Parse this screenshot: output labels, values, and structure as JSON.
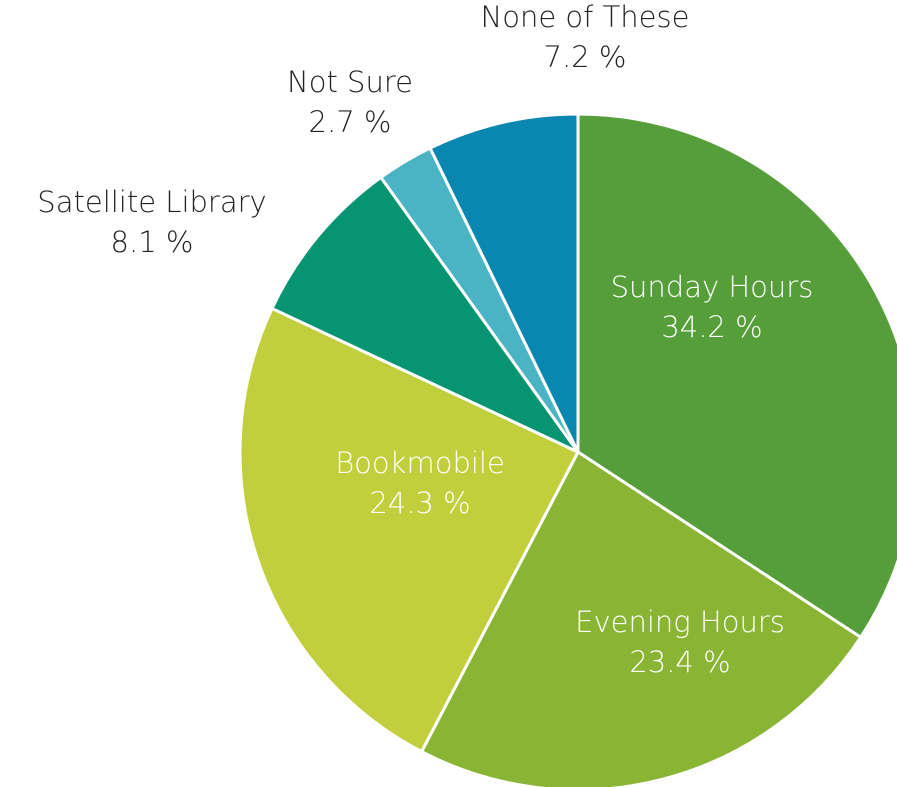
{
  "chart_data": {
    "type": "pie",
    "categories": [
      "Sunday Hours",
      "Evening Hours",
      "Bookmobile",
      "Satellite Library",
      "Not Sure",
      "None of These"
    ],
    "values": [
      34.2,
      23.4,
      24.3,
      8.1,
      2.7,
      7.2
    ],
    "value_labels": [
      "34.2 %",
      "23.4 %",
      "24.3 %",
      "8.1 %",
      "2.7 %",
      "7.2 %"
    ],
    "colors": [
      "#559e3a",
      "#8ab534",
      "#c2cf3d",
      "#079470",
      "#4ab3c4",
      "#0a87b0"
    ]
  }
}
